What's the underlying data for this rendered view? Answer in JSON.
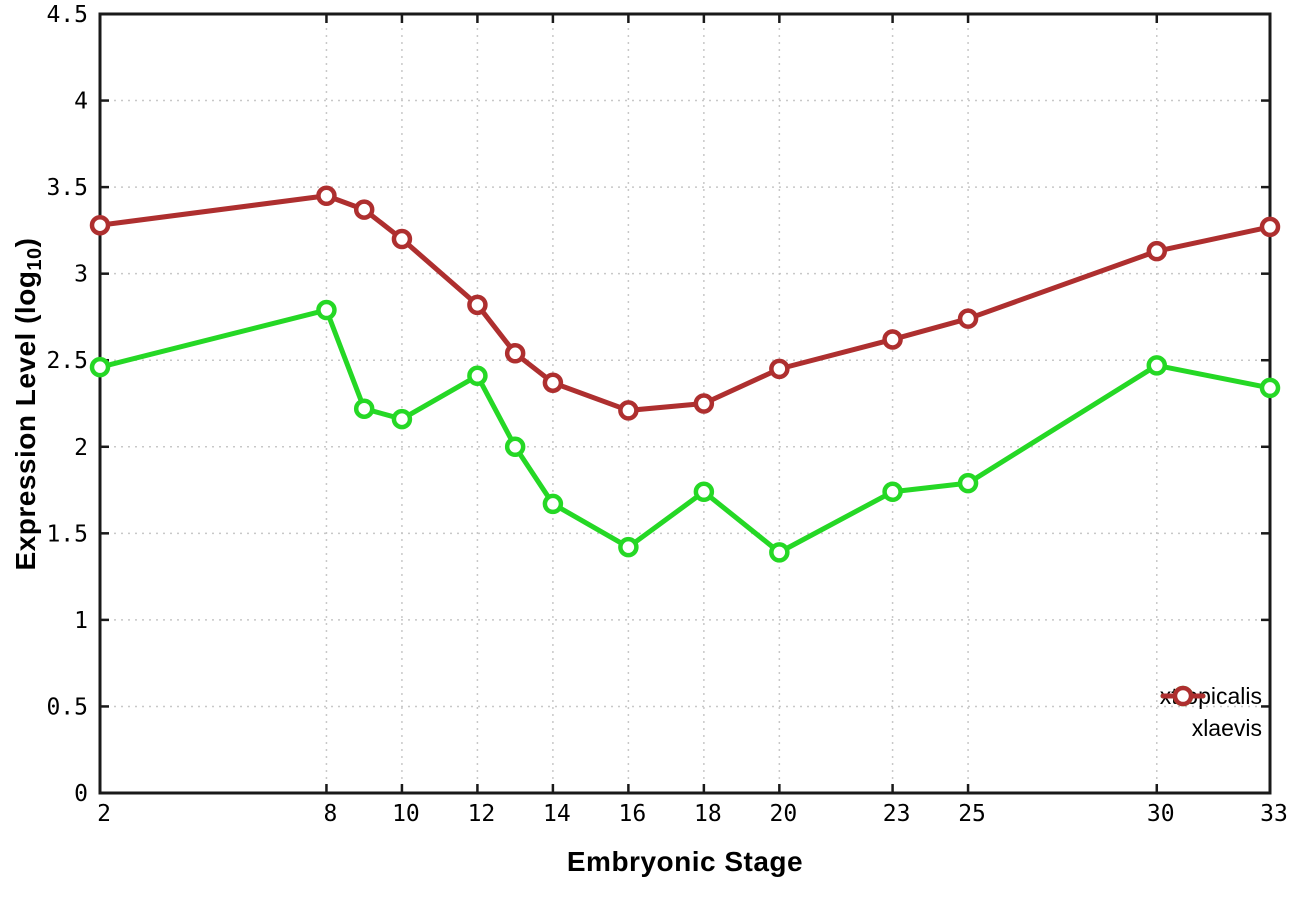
{
  "chart_data": {
    "type": "line",
    "title": "",
    "xlabel": "Embryonic Stage",
    "ylabel": "Expression Level (log10)",
    "ylabel_parts": {
      "pre": "Expression Level (log",
      "sub": "10",
      "post": ")"
    },
    "xlim": [
      2,
      33
    ],
    "ylim": [
      0,
      4.5
    ],
    "xticks": [
      "2",
      "8",
      "10",
      "12",
      "14",
      "16",
      "18",
      "20",
      "23",
      "25",
      "30",
      "33"
    ],
    "yticks": [
      "0",
      "0.5",
      "1",
      "1.5",
      "2",
      "2.5",
      "3",
      "3.5",
      "4",
      "4.5"
    ],
    "grid": "dotted",
    "legend_position": "inside-bottom-right",
    "x": [
      2,
      8,
      9,
      10,
      12,
      13,
      14,
      16,
      18,
      20,
      23,
      25,
      30,
      33
    ],
    "series": [
      {
        "name": "xtropicalis",
        "color": "#25d825",
        "marker": "open-circle",
        "values": [
          2.46,
          2.79,
          2.22,
          2.16,
          2.41,
          2.0,
          1.67,
          1.42,
          1.74,
          1.39,
          1.74,
          1.79,
          2.47,
          2.34
        ]
      },
      {
        "name": "xlaevis",
        "color": "#ae2f2f",
        "marker": "open-circle",
        "values": [
          3.28,
          3.45,
          3.37,
          3.2,
          2.82,
          2.54,
          2.37,
          2.21,
          2.25,
          2.45,
          2.62,
          2.74,
          3.13,
          3.27
        ]
      }
    ],
    "colors": {
      "axis": "#1a1a1a",
      "grid": "#c8c8c8",
      "tick_label": "#000000"
    }
  }
}
